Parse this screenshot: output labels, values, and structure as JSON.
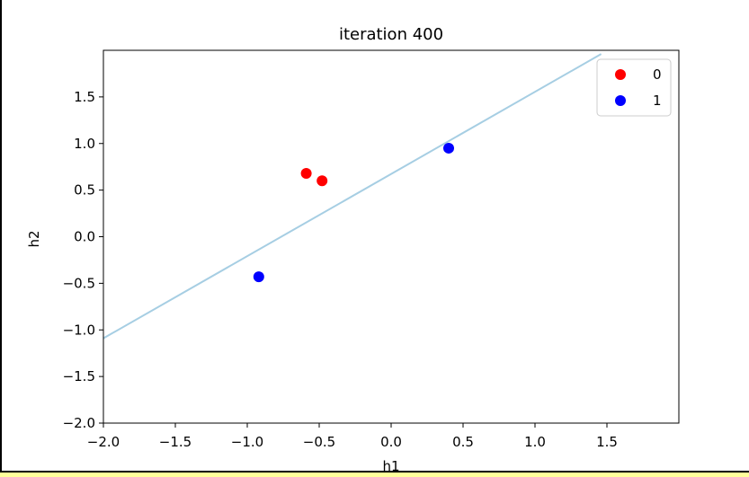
{
  "chart_data": {
    "type": "scatter",
    "title": "iteration 400",
    "xlabel": "h1",
    "ylabel": "h2",
    "xlim": [
      -2.0,
      2.0
    ],
    "ylim": [
      -2.0,
      2.0
    ],
    "xticks": [
      "−2.0",
      "−1.5",
      "−1.0",
      "−0.5",
      "0.0",
      "0.5",
      "1.0",
      "1.5"
    ],
    "yticks": [
      "−2.0",
      "−1.5",
      "−1.0",
      "−0.5",
      "0.0",
      "0.5",
      "1.0",
      "1.5"
    ],
    "grid": false,
    "legend_position": "top-right",
    "series": [
      {
        "name": "0",
        "color": "#ff0000",
        "points": [
          [
            -0.59,
            0.68
          ],
          [
            -0.48,
            0.6
          ]
        ]
      },
      {
        "name": "1",
        "color": "#0000ff",
        "points": [
          [
            -0.92,
            -0.43
          ],
          [
            0.4,
            0.95
          ]
        ]
      }
    ],
    "decision_line": {
      "color": "#a6cee3",
      "points": [
        [
          -2.0,
          -1.09
        ],
        [
          1.46,
          1.96
        ]
      ]
    }
  }
}
